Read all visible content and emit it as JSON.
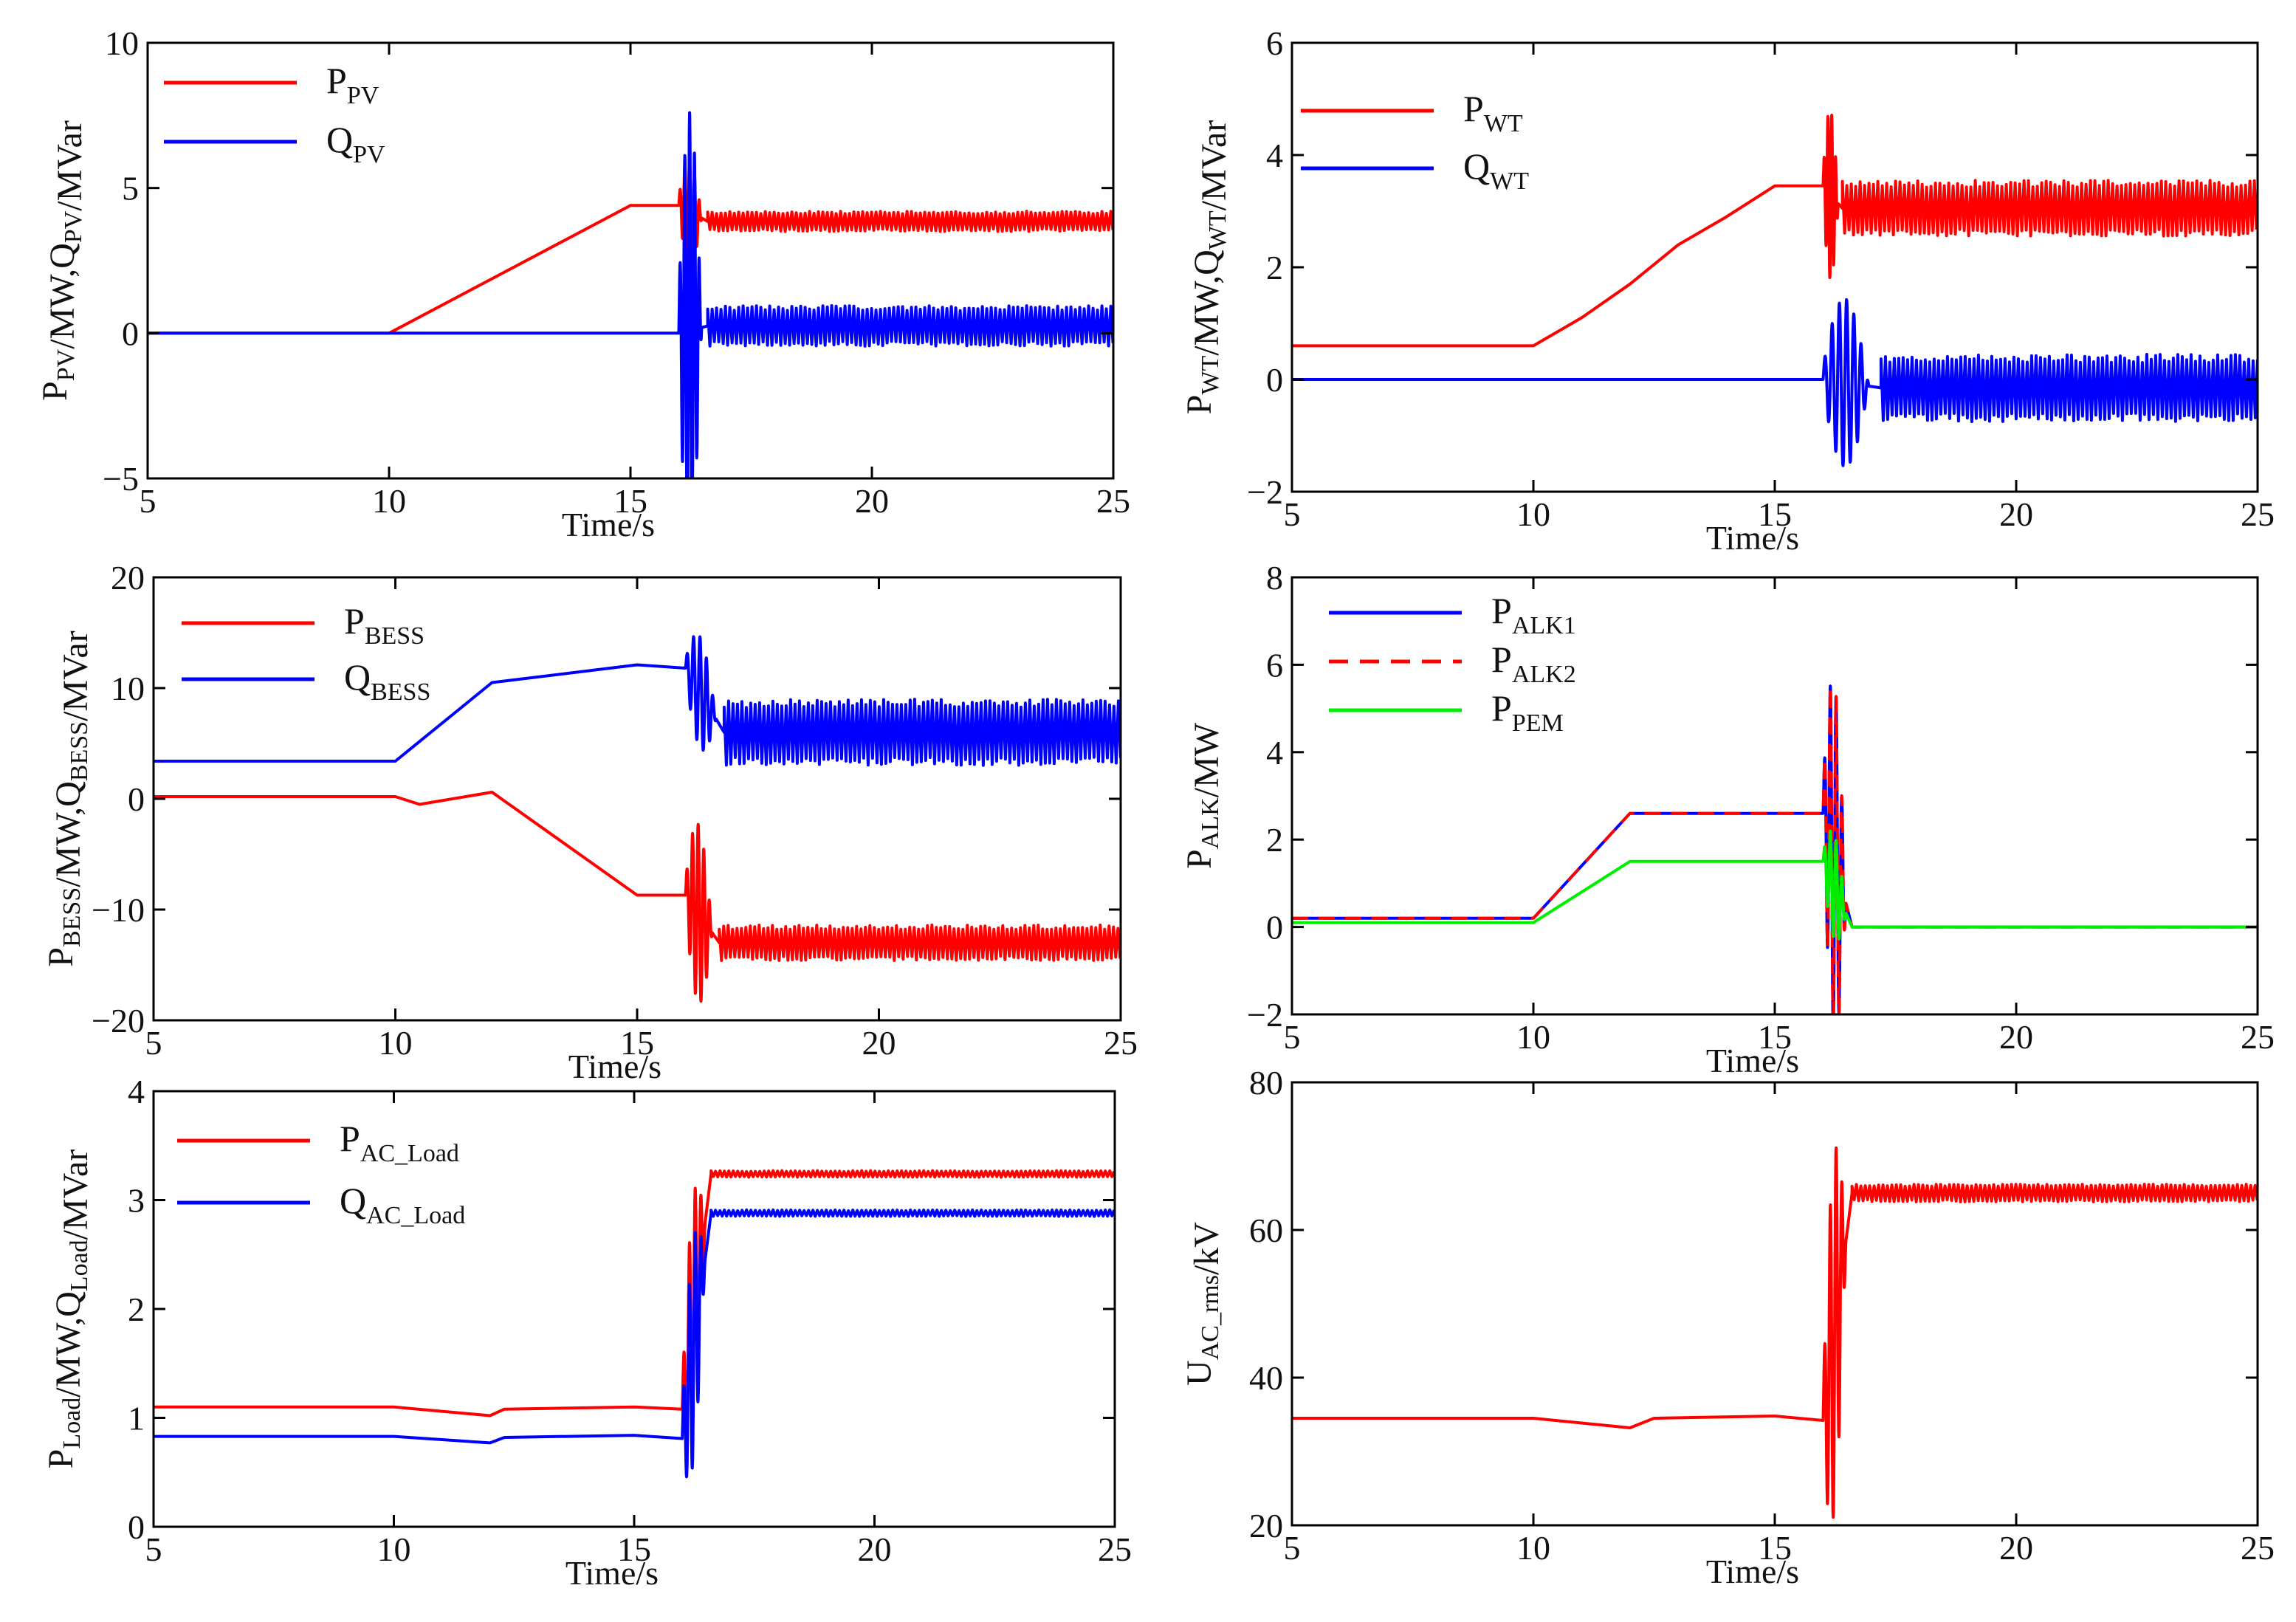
{
  "chart_data": [
    {
      "id": "pv",
      "type": "line",
      "xlabel": "Time/s",
      "ylabel": "P_PV/MW,Q_PV/MVar",
      "ylabel_parts": [
        [
          "P",
          ""
        ],
        [
          "PV",
          "sub"
        ],
        [
          "/MW,Q",
          ""
        ],
        [
          "PV",
          "sub"
        ],
        [
          "/MVar",
          ""
        ]
      ],
      "xlim": [
        5,
        25
      ],
      "ylim": [
        -5,
        10
      ],
      "xticks": [
        5,
        10,
        15,
        20,
        25
      ],
      "yticks": [
        -5,
        0,
        5,
        10
      ],
      "xtick_labels": [
        "5",
        "10",
        "15",
        "20",
        "25"
      ],
      "ytick_labels": [
        "−5",
        "0",
        "5",
        "10"
      ],
      "legend": [
        {
          "main": "P",
          "sub": "PV",
          "color": "#ff0000",
          "dash": "solid"
        },
        {
          "main": "Q",
          "sub": "PV",
          "color": "#0000ff",
          "dash": "solid"
        }
      ],
      "series": [
        {
          "name": "P_PV",
          "color": "#ff0000",
          "points": [
            [
              5,
              0
            ],
            [
              10,
              0
            ],
            [
              15,
              4.4
            ],
            [
              16,
              4.4
            ]
          ],
          "transient": {
            "t0": 16,
            "t1": 16.6,
            "amp": 1.8,
            "cycles": 6
          },
          "steady": {
            "from": 16.6,
            "center": 3.85,
            "amp": 0.35
          }
        },
        {
          "name": "Q_PV",
          "color": "#0000ff",
          "points": [
            [
              5,
              0
            ],
            [
              16,
              0
            ]
          ],
          "transient": {
            "t0": 16,
            "t1": 16.6,
            "amp": 7.5,
            "cycles": 6
          },
          "steady": {
            "from": 16.6,
            "center": 0.25,
            "amp": 0.7
          }
        }
      ]
    },
    {
      "id": "wt",
      "type": "line",
      "xlabel": "Time/s",
      "ylabel": "P_WT/MW,Q_WT/MVar",
      "ylabel_parts": [
        [
          "P",
          ""
        ],
        [
          "WT",
          "sub"
        ],
        [
          "/MW,Q",
          ""
        ],
        [
          "WT",
          "sub"
        ],
        [
          "/MVar",
          ""
        ]
      ],
      "xlim": [
        5,
        25
      ],
      "ylim": [
        -2,
        6
      ],
      "xticks": [
        5,
        10,
        15,
        20,
        25
      ],
      "yticks": [
        -2,
        0,
        2,
        4,
        6
      ],
      "xtick_labels": [
        "5",
        "10",
        "15",
        "20",
        "25"
      ],
      "ytick_labels": [
        "−2",
        "0",
        "2",
        "4",
        "6"
      ],
      "legend": [
        {
          "main": "P",
          "sub": "WT",
          "color": "#ff0000",
          "dash": "solid"
        },
        {
          "main": "Q",
          "sub": "WT",
          "color": "#0000ff",
          "dash": "solid"
        }
      ],
      "series": [
        {
          "name": "P_WT",
          "color": "#ff0000",
          "points": [
            [
              5,
              0.6
            ],
            [
              10,
              0.6
            ],
            [
              11,
              1.1
            ],
            [
              12,
              1.7
            ],
            [
              13,
              2.4
            ],
            [
              14,
              2.9
            ],
            [
              15,
              3.45
            ],
            [
              16,
              3.45
            ]
          ],
          "transient": {
            "t0": 16,
            "t1": 16.4,
            "amp": 1.5,
            "cycles": 5
          },
          "steady": {
            "from": 16.4,
            "center": 3.05,
            "amp": 0.5
          }
        },
        {
          "name": "Q_WT",
          "color": "#0000ff",
          "points": [
            [
              5,
              0
            ],
            [
              16,
              0
            ]
          ],
          "transient": {
            "t0": 16,
            "t1": 17.2,
            "amp": 1.5,
            "cycles": 8
          },
          "steady": {
            "from": 17.2,
            "center": -0.15,
            "amp": 0.6
          }
        }
      ]
    },
    {
      "id": "bess",
      "type": "line",
      "xlabel": "Time/s",
      "ylabel": "P_BESS/MW,Q_BESS/MVar",
      "ylabel_parts": [
        [
          "P",
          ""
        ],
        [
          "BESS",
          "sub"
        ],
        [
          "/MW,Q",
          ""
        ],
        [
          "BESS",
          "sub"
        ],
        [
          "/MVar",
          ""
        ]
      ],
      "xlim": [
        5,
        25
      ],
      "ylim": [
        -20,
        20
      ],
      "xticks": [
        5,
        10,
        15,
        20,
        25
      ],
      "yticks": [
        -20,
        -10,
        0,
        10,
        20
      ],
      "xtick_labels": [
        "5",
        "10",
        "15",
        "20",
        "25"
      ],
      "ytick_labels": [
        "−20",
        "−10",
        "0",
        "10",
        "20"
      ],
      "legend": [
        {
          "main": "P",
          "sub": "BESS",
          "color": "#ff0000",
          "dash": "solid"
        },
        {
          "main": "Q",
          "sub": "BESS",
          "color": "#0000ff",
          "dash": "solid"
        }
      ],
      "series": [
        {
          "name": "P_BESS",
          "color": "#ff0000",
          "points": [
            [
              5,
              0.2
            ],
            [
              10,
              0.2
            ],
            [
              10.5,
              -0.5
            ],
            [
              12,
              0.6
            ],
            [
              15,
              -8.7
            ],
            [
              16,
              -8.7
            ]
          ],
          "transient": {
            "t0": 16,
            "t1": 16.7,
            "amp": 8,
            "cycles": 6
          },
          "steady": {
            "from": 16.7,
            "center": -13,
            "amp": 1.6
          }
        },
        {
          "name": "Q_BESS",
          "color": "#0000ff",
          "points": [
            [
              5,
              3.4
            ],
            [
              10,
              3.4
            ],
            [
              12,
              10.5
            ],
            [
              15,
              12.1
            ],
            [
              16,
              11.8
            ]
          ],
          "transient": {
            "t0": 16,
            "t1": 16.8,
            "amp": 5,
            "cycles": 6
          },
          "steady": {
            "from": 16.8,
            "center": 6,
            "amp": 3
          }
        }
      ]
    },
    {
      "id": "alk",
      "type": "line",
      "xlabel": "Time/s",
      "ylabel": "P_ALK/MW",
      "ylabel_parts": [
        [
          "P",
          ""
        ],
        [
          "ALK",
          "sub"
        ],
        [
          "/MW",
          ""
        ]
      ],
      "xlim": [
        5,
        25
      ],
      "ylim": [
        -2,
        8
      ],
      "xticks": [
        5,
        10,
        15,
        20,
        25
      ],
      "yticks": [
        -2,
        0,
        2,
        4,
        6,
        8
      ],
      "xtick_labels": [
        "5",
        "10",
        "15",
        "20",
        "25"
      ],
      "ytick_labels": [
        "−2",
        "0",
        "2",
        "4",
        "6",
        "8"
      ],
      "legend": [
        {
          "main": "P",
          "sub": "ALK1",
          "color": "#0000ff",
          "dash": "solid"
        },
        {
          "main": "P",
          "sub": "ALK2",
          "color": "#ff0000",
          "dash": "dashed"
        },
        {
          "main": "P",
          "sub": "PEM",
          "color": "#00ee00",
          "dash": "solid"
        }
      ],
      "series": [
        {
          "name": "P_ALK1",
          "color": "#0000ff",
          "points": [
            [
              5,
              0.2
            ],
            [
              10,
              0.2
            ],
            [
              12,
              2.6
            ],
            [
              16,
              2.6
            ]
          ],
          "transient": {
            "t0": 16,
            "t1": 16.6,
            "amp": 4,
            "cycles": 5
          },
          "steady": {
            "from": 16.7,
            "center": 0,
            "amp": 0
          }
        },
        {
          "name": "P_ALK2",
          "color": "#ff0000",
          "points": [
            [
              5,
              0.2
            ],
            [
              10,
              0.2
            ],
            [
              12,
              2.6
            ],
            [
              16,
              2.6
            ]
          ],
          "transient": {
            "t0": 16,
            "t1": 16.6,
            "amp": 4,
            "cycles": 5
          },
          "steady": {
            "from": 16.7,
            "center": 0,
            "amp": 0
          }
        },
        {
          "name": "P_PEM",
          "color": "#00ee00",
          "points": [
            [
              5,
              0.1
            ],
            [
              10,
              0.1
            ],
            [
              12,
              1.5
            ],
            [
              16,
              1.5
            ]
          ],
          "transient": {
            "t0": 16,
            "t1": 16.6,
            "amp": 1.2,
            "cycles": 5
          },
          "steady": {
            "from": 16.7,
            "center": 0,
            "amp": 0
          }
        }
      ]
    },
    {
      "id": "load",
      "type": "line",
      "xlabel": "Time/s",
      "ylabel": "P_Load/MW,Q_Load/MVar",
      "ylabel_parts": [
        [
          "P",
          ""
        ],
        [
          "Load",
          "sub"
        ],
        [
          "/MW,Q",
          ""
        ],
        [
          "Load",
          "sub"
        ],
        [
          "/MVar",
          ""
        ]
      ],
      "xlim": [
        5,
        25
      ],
      "ylim": [
        0,
        4
      ],
      "xticks": [
        5,
        10,
        15,
        20,
        25
      ],
      "yticks": [
        0,
        1,
        2,
        3,
        4
      ],
      "xtick_labels": [
        "5",
        "10",
        "15",
        "20",
        "25"
      ],
      "ytick_labels": [
        "0",
        "1",
        "2",
        "3",
        "4"
      ],
      "legend": [
        {
          "main": "P",
          "sub": "AC_Load",
          "color": "#ff0000",
          "dash": "solid"
        },
        {
          "main": "Q",
          "sub": "AC_Load",
          "color": "#0000ff",
          "dash": "solid"
        }
      ],
      "series": [
        {
          "name": "P_AC_Load",
          "color": "#ff0000",
          "points": [
            [
              5,
              1.1
            ],
            [
              10,
              1.1
            ],
            [
              12,
              1.02
            ],
            [
              12.3,
              1.08
            ],
            [
              15,
              1.1
            ],
            [
              16,
              1.08
            ]
          ],
          "transient": {
            "t0": 16,
            "t1": 16.6,
            "amp": 1.1,
            "cycles": 5
          },
          "steady": {
            "from": 16.6,
            "center": 3.24,
            "amp": 0.03
          }
        },
        {
          "name": "Q_AC_Load",
          "color": "#0000ff",
          "points": [
            [
              5,
              0.83
            ],
            [
              10,
              0.83
            ],
            [
              12,
              0.77
            ],
            [
              12.3,
              0.82
            ],
            [
              15,
              0.84
            ],
            [
              16,
              0.81
            ]
          ],
          "transient": {
            "t0": 16,
            "t1": 16.6,
            "amp": 1.0,
            "cycles": 5
          },
          "steady": {
            "from": 16.6,
            "center": 2.88,
            "amp": 0.03
          }
        }
      ]
    },
    {
      "id": "uac",
      "type": "line",
      "xlabel": "Time/s",
      "ylabel": "U_AC_rms/kV",
      "ylabel_parts": [
        [
          "U",
          ""
        ],
        [
          "AC_rms",
          "sub"
        ],
        [
          "/kV",
          ""
        ]
      ],
      "xlim": [
        5,
        25
      ],
      "ylim": [
        20,
        80
      ],
      "xticks": [
        5,
        10,
        15,
        20,
        25
      ],
      "yticks": [
        20,
        40,
        60,
        80
      ],
      "xtick_labels": [
        "5",
        "10",
        "15",
        "20",
        "25"
      ],
      "ytick_labels": [
        "20",
        "40",
        "60",
        "80"
      ],
      "legend": [],
      "series": [
        {
          "name": "U_AC_rms",
          "color": "#ff0000",
          "points": [
            [
              5,
              34.5
            ],
            [
              10,
              34.5
            ],
            [
              12,
              33.2
            ],
            [
              12.5,
              34.5
            ],
            [
              15,
              34.8
            ],
            [
              16,
              34.2
            ]
          ],
          "transient": {
            "t0": 16,
            "t1": 16.6,
            "amp": 24,
            "cycles": 5
          },
          "steady": {
            "from": 16.6,
            "center": 65,
            "amp": 1.2
          }
        }
      ]
    }
  ]
}
